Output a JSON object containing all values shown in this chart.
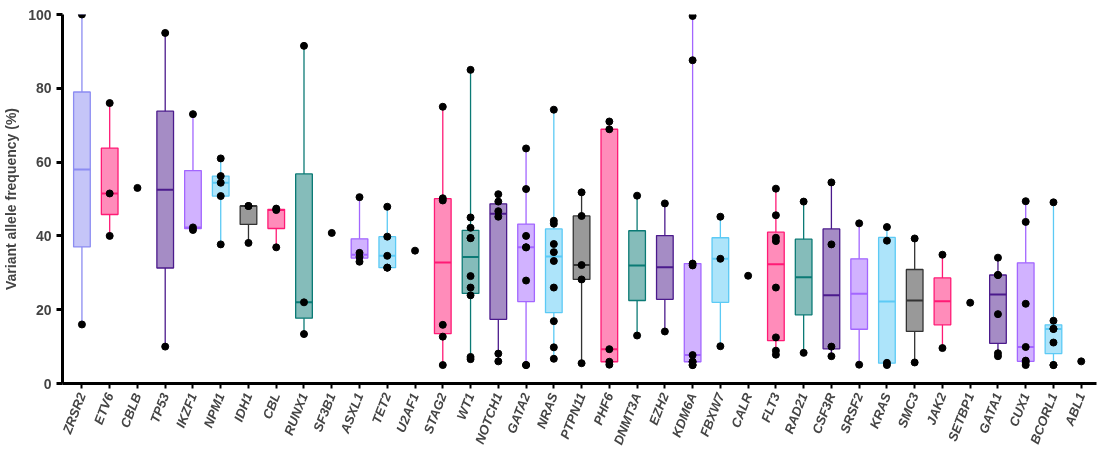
{
  "chart_data": {
    "type": "box",
    "ylabel": "Variant allele frequency (%)",
    "ylim": [
      0,
      100
    ],
    "yticks": [
      0,
      20,
      40,
      60,
      80,
      100
    ],
    "grid": false,
    "marker": "circle",
    "categories": [
      "ZRSR2",
      "ETV6",
      "CBLB",
      "TP53",
      "IKZF1",
      "NPM1",
      "IDH1",
      "CBL",
      "RUNX1",
      "SF3B1",
      "ASXL1",
      "TET2",
      "U2AF1",
      "STAG2",
      "WT1",
      "NOTCH1",
      "GATA2",
      "NRAS",
      "PTPN11",
      "PHF6",
      "DNMT3A",
      "EZH2",
      "KDM6A",
      "FBXW7",
      "CALR",
      "FLT3",
      "RAD21",
      "CSF3R",
      "SRSF2",
      "KRAS",
      "SMC3",
      "JAK2",
      "SETBP1",
      "GATA1",
      "CUX1",
      "BCORL1",
      "ABL1"
    ],
    "colors": [
      "#8c8cf2",
      "#ff1a75",
      null,
      "#4b1a8c",
      "#a366ff",
      "#5ccaf5",
      "#333333",
      "#ff1a75",
      "#0b7a75",
      null,
      "#a366ff",
      "#5ccaf5",
      null,
      "#ff1a75",
      "#0b7a75",
      "#4b1a8c",
      "#a366ff",
      "#5ccaf5",
      "#333333",
      "#ff1a75",
      "#0b7a75",
      "#4b1a8c",
      "#a366ff",
      "#5ccaf5",
      null,
      "#ff1a75",
      "#0b7a75",
      "#4b1a8c",
      "#a366ff",
      "#5ccaf5",
      "#333333",
      "#ff1a75",
      null,
      "#4b1a8c",
      "#a366ff",
      "#5ccaf5",
      null
    ],
    "boxes": [
      {
        "low": 16,
        "q1": 37,
        "median": 58,
        "q3": 79,
        "high": 100
      },
      {
        "low": 40,
        "q1": 45.8,
        "median": 51.5,
        "q3": 63.8,
        "high": 76
      },
      null,
      {
        "low": 10,
        "q1": 31.3,
        "median": 52.5,
        "q3": 73.8,
        "high": 95
      },
      {
        "low": 41.6,
        "q1": 42,
        "median": 42.3,
        "q3": 57.7,
        "high": 73
      },
      {
        "low": 37.7,
        "q1": 50.8,
        "median": 54.4,
        "q3": 56.2,
        "high": 61
      },
      {
        "low": 38.1,
        "q1": 43.1,
        "median": 48.1,
        "q3": 48.1,
        "high": 48.1
      },
      {
        "low": 36.9,
        "q1": 42,
        "median": 47,
        "q3": 47.2,
        "high": 47.4
      },
      {
        "low": 13.4,
        "q1": 17.7,
        "median": 22,
        "q3": 56.8,
        "high": 91.5
      },
      null,
      {
        "low": 33,
        "q1": 34,
        "median": 34.9,
        "q3": 39.2,
        "high": 50.5
      },
      {
        "low": 31.4,
        "q1": 31.4,
        "median": 34.6,
        "q3": 39.8,
        "high": 47.9
      },
      null,
      {
        "low": 5,
        "q1": 13.5,
        "median": 32.8,
        "q3": 50.1,
        "high": 75
      },
      {
        "low": 6.6,
        "q1": 24.4,
        "median": 34.3,
        "q3": 41.5,
        "high": 85
      },
      {
        "low": 6,
        "q1": 17.4,
        "median": 46,
        "q3": 48.7,
        "high": 51.3
      },
      {
        "low": 5,
        "q1": 22.2,
        "median": 36.9,
        "q3": 43.2,
        "high": 63.7
      },
      {
        "low": 6.7,
        "q1": 19.2,
        "median": 34.4,
        "q3": 41.9,
        "high": 74.2
      },
      {
        "low": 5.5,
        "q1": 28.2,
        "median": 32.1,
        "q3": 45.4,
        "high": 51.8
      },
      {
        "low": 5.1,
        "q1": 5.9,
        "median": 9.3,
        "q3": 68.9,
        "high": 71
      },
      {
        "low": 13,
        "q1": 22.5,
        "median": 32,
        "q3": 41.4,
        "high": 50.9
      },
      {
        "low": 14.1,
        "q1": 22.8,
        "median": 31.5,
        "q3": 40.1,
        "high": 48.8
      },
      {
        "low": 5,
        "q1": 5.9,
        "median": 7.7,
        "q3": 32.5,
        "high": 99.6
      },
      {
        "low": 10.1,
        "q1": 22,
        "median": 33.8,
        "q3": 39.5,
        "high": 45.2
      },
      null,
      {
        "low": 7.8,
        "q1": 11.6,
        "median": 32.3,
        "q3": 41,
        "high": 52.8
      },
      {
        "low": 8.3,
        "q1": 18.6,
        "median": 28.8,
        "q3": 39.1,
        "high": 49.3
      },
      {
        "low": 7.4,
        "q1": 9.4,
        "median": 23.9,
        "q3": 41.9,
        "high": 54.5
      },
      {
        "low": 5.1,
        "q1": 14.7,
        "median": 24.3,
        "q3": 33.8,
        "high": 43.4
      },
      {
        "low": 5,
        "q1": 5.5,
        "median": 22.2,
        "q3": 39.6,
        "high": 42.4
      },
      {
        "low": 5.7,
        "q1": 14.1,
        "median": 22.5,
        "q3": 30.9,
        "high": 39.3
      },
      {
        "low": 9.6,
        "q1": 15.9,
        "median": 22.3,
        "q3": 28.6,
        "high": 34.9
      },
      null,
      {
        "low": 7.4,
        "q1": 10.9,
        "median": 24.1,
        "q3": 29.4,
        "high": 34.1
      },
      {
        "low": 5,
        "q1": 6,
        "median": 9.9,
        "q3": 32.7,
        "high": 49.4
      },
      {
        "low": 5,
        "q1": 8.1,
        "median": 14.8,
        "q3": 15.9,
        "high": 49.1
      },
      null
    ],
    "series": [
      {
        "type": "scatter",
        "color": "#000000",
        "x": [
          "ZRSR2",
          "ZRSR2",
          "ETV6",
          "ETV6",
          "ETV6",
          "CBLB",
          "TP53",
          "TP53",
          "IKZF1",
          "IKZF1",
          "IKZF1",
          "NPM1",
          "NPM1",
          "NPM1",
          "NPM1",
          "NPM1",
          "IDH1",
          "IDH1",
          "IDH1",
          "CBL",
          "CBL",
          "CBL",
          "RUNX1",
          "RUNX1",
          "RUNX1",
          "SF3B1",
          "ASXL1",
          "ASXL1",
          "ASXL1",
          "ASXL1",
          "TET2",
          "TET2",
          "TET2",
          "TET2",
          "TET2",
          "U2AF1",
          "STAG2",
          "STAG2",
          "STAG2",
          "STAG2",
          "STAG2",
          "STAG2",
          "WT1",
          "WT1",
          "WT1",
          "WT1",
          "WT1",
          "WT1",
          "WT1",
          "WT1",
          "WT1",
          "WT1",
          "NOTCH1",
          "NOTCH1",
          "NOTCH1",
          "NOTCH1",
          "NOTCH1",
          "NOTCH1",
          "GATA2",
          "GATA2",
          "GATA2",
          "GATA2",
          "GATA2",
          "GATA2",
          "GATA2",
          "GATA2",
          "NRAS",
          "NRAS",
          "NRAS",
          "NRAS",
          "NRAS",
          "NRAS",
          "NRAS",
          "NRAS",
          "NRAS",
          "NRAS",
          "PTPN11",
          "PTPN11",
          "PTPN11",
          "PTPN11",
          "PTPN11",
          "PHF6",
          "PHF6",
          "PHF6",
          "PHF6",
          "PHF6",
          "DNMT3A",
          "DNMT3A",
          "EZH2",
          "EZH2",
          "KDM6A",
          "KDM6A",
          "KDM6A",
          "KDM6A",
          "KDM6A",
          "KDM6A",
          "KDM6A",
          "KDM6A",
          "KDM6A",
          "FBXW7",
          "FBXW7",
          "FBXW7",
          "CALR",
          "FLT3",
          "FLT3",
          "FLT3",
          "FLT3",
          "FLT3",
          "FLT3",
          "FLT3",
          "FLT3",
          "RAD21",
          "RAD21",
          "CSF3R",
          "CSF3R",
          "CSF3R",
          "CSF3R",
          "SRSF2",
          "SRSF2",
          "KRAS",
          "KRAS",
          "KRAS",
          "KRAS",
          "SMC3",
          "SMC3",
          "JAK2",
          "JAK2",
          "SETBP1",
          "GATA1",
          "GATA1",
          "GATA1",
          "GATA1",
          "GATA1",
          "GATA1",
          "CUX1",
          "CUX1",
          "CUX1",
          "CUX1",
          "CUX1",
          "CUX1",
          "CUX1",
          "BCORL1",
          "BCORL1",
          "BCORL1",
          "BCORL1",
          "BCORL1",
          "BCORL1",
          "BCORL1",
          "ABL1"
        ],
        "values": [
          100,
          16,
          76,
          51.5,
          40,
          53,
          95,
          10,
          73,
          42.3,
          41.6,
          61,
          56.2,
          54.4,
          50.8,
          37.7,
          48.1,
          48.1,
          38.1,
          47.4,
          47,
          36.9,
          91.5,
          22,
          13.4,
          40.8,
          50.5,
          35.4,
          34.3,
          33,
          47.9,
          39.8,
          34.6,
          31.4,
          31.4,
          36,
          75,
          50.2,
          49.6,
          15.9,
          12.7,
          5,
          85,
          45,
          42.2,
          39.4,
          39.4,
          29.1,
          26,
          23.9,
          7.2,
          6.6,
          51.3,
          49.3,
          46.7,
          45.2,
          8.1,
          6,
          63.7,
          52.7,
          40,
          36.9,
          36.9,
          27.9,
          5,
          5,
          74.2,
          44.1,
          43.3,
          37.8,
          35.6,
          33.2,
          26,
          16.9,
          9.8,
          6.7,
          51.8,
          45.4,
          32.1,
          28.2,
          5.5,
          71,
          68.9,
          9.3,
          5.9,
          5.1,
          50.9,
          13,
          48.8,
          14.1,
          99.6,
          87.6,
          32.5,
          32,
          7.7,
          5.9,
          5.9,
          5,
          5,
          45.2,
          33.8,
          10.1,
          29.2,
          52.8,
          45.6,
          39.5,
          38.6,
          26,
          12.5,
          8.9,
          7.8,
          49.3,
          8.3,
          54.5,
          37.7,
          10,
          7.4,
          43.4,
          5.1,
          42.4,
          38.7,
          5.6,
          5,
          39.3,
          5.7,
          34.9,
          9.6,
          21.9,
          34.1,
          29.4,
          29.4,
          18.8,
          8.2,
          7.4,
          49.4,
          43.8,
          21.6,
          9.9,
          6.2,
          5.8,
          5,
          49.1,
          17,
          14.8,
          14.8,
          11.1,
          5,
          5,
          6
        ]
      }
    ]
  }
}
